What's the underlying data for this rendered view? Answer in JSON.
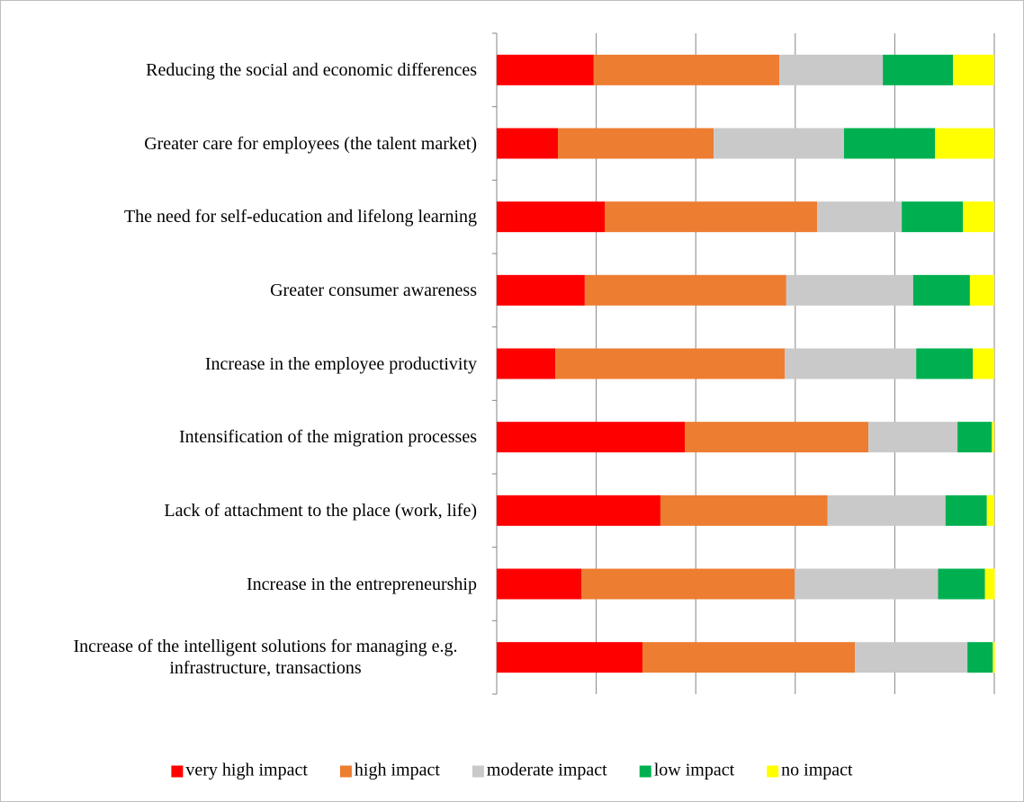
{
  "chart_data": {
    "type": "stacked-bar-horizontal",
    "categories": [
      "Reducing the social and economic differences",
      "Greater care for employees (the talent market)",
      "The need for self-education and lifelong learning",
      "Greater consumer awareness",
      "Increase in the employee productivity",
      "Intensification of the migration processes",
      "Lack of attachment to the place (work, life)",
      "Increase in the entrepreneurship",
      "Increase of the intelligent solutions for managing e.g. infrastructure, transactions"
    ],
    "series": [
      {
        "name": "very high impact",
        "color": "#ff0000",
        "values": [
          19.5,
          12.3,
          21.7,
          17.7,
          11.8,
          37.8,
          32.9,
          17.0,
          29.3
        ]
      },
      {
        "name": "high impact",
        "color": "#ed7d31",
        "values": [
          37.3,
          31.3,
          42.7,
          40.5,
          46.1,
          36.9,
          33.6,
          42.9,
          42.7
        ]
      },
      {
        "name": "moderate impact",
        "color": "#c9c9c9",
        "values": [
          20.8,
          26.2,
          17.0,
          25.5,
          26.4,
          17.9,
          23.7,
          28.8,
          22.6
        ]
      },
      {
        "name": "low impact",
        "color": "#00b050",
        "values": [
          14.1,
          18.3,
          12.3,
          11.4,
          11.4,
          6.9,
          8.3,
          9.4,
          5.1
        ]
      },
      {
        "name": "no impact",
        "color": "#ffff00",
        "values": [
          8.3,
          11.9,
          6.3,
          4.9,
          4.3,
          0.5,
          1.5,
          2.0,
          0.4
        ]
      }
    ],
    "xlim": [
      0,
      100
    ],
    "xticks": [
      0,
      20,
      40,
      60,
      80,
      100
    ],
    "grid": true,
    "legend": "bottom"
  }
}
